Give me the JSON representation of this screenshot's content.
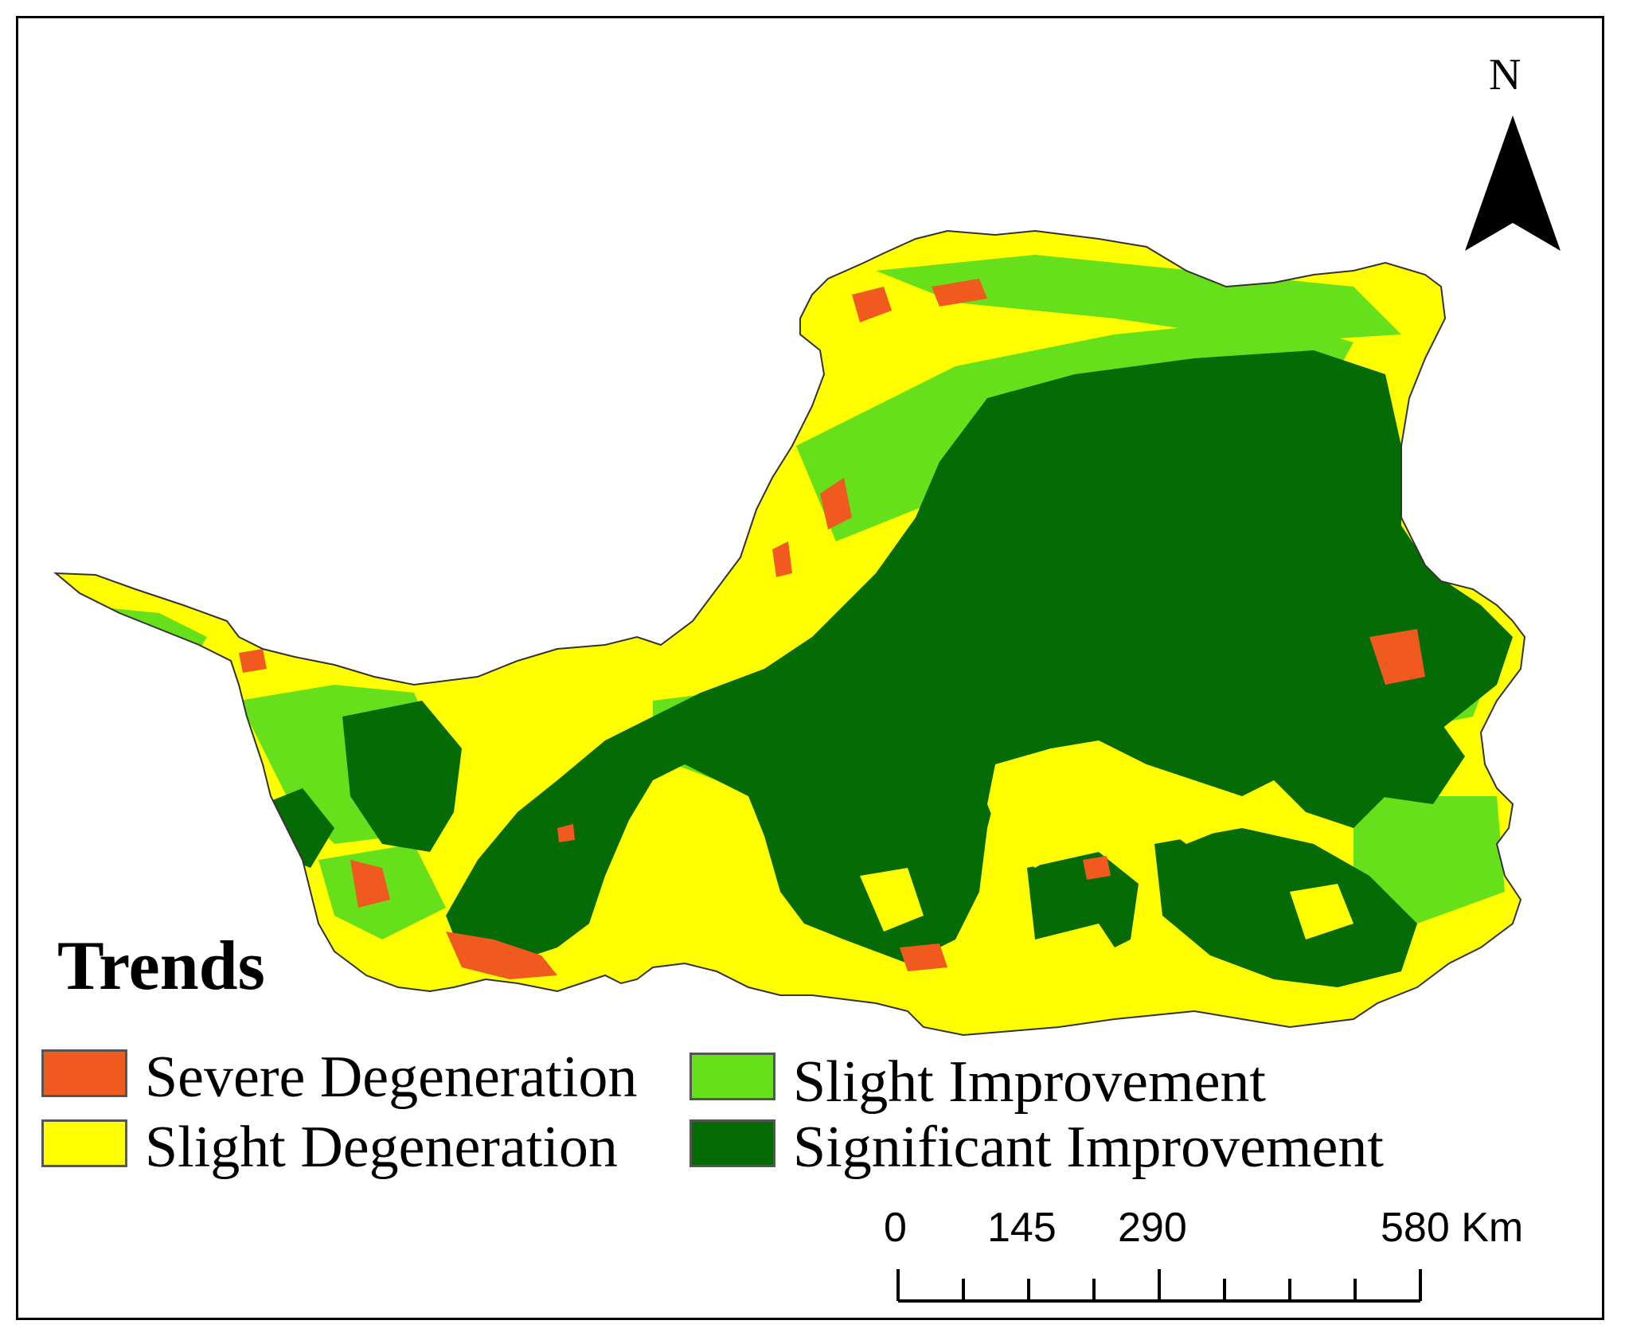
{
  "legend": {
    "title": "Trends",
    "items": [
      {
        "label": "Severe Degeneration",
        "color": "#f05a1e"
      },
      {
        "label": "Slight Degeneration",
        "color": "#ffff00"
      },
      {
        "label": "Slight Improvement",
        "color": "#66e01a"
      },
      {
        "label": "Significant Improvement",
        "color": "#056b05"
      }
    ]
  },
  "north_arrow": {
    "label": "N",
    "icon": "north-arrow-icon"
  },
  "scale_bar": {
    "labels": [
      "0",
      "145",
      "290",
      "580 Km"
    ]
  },
  "map": {
    "region_colors": {
      "severe": "#f05a1e",
      "slight_deg": "#ffff00",
      "slight_imp": "#66e01a",
      "significant": "#056b05"
    }
  }
}
